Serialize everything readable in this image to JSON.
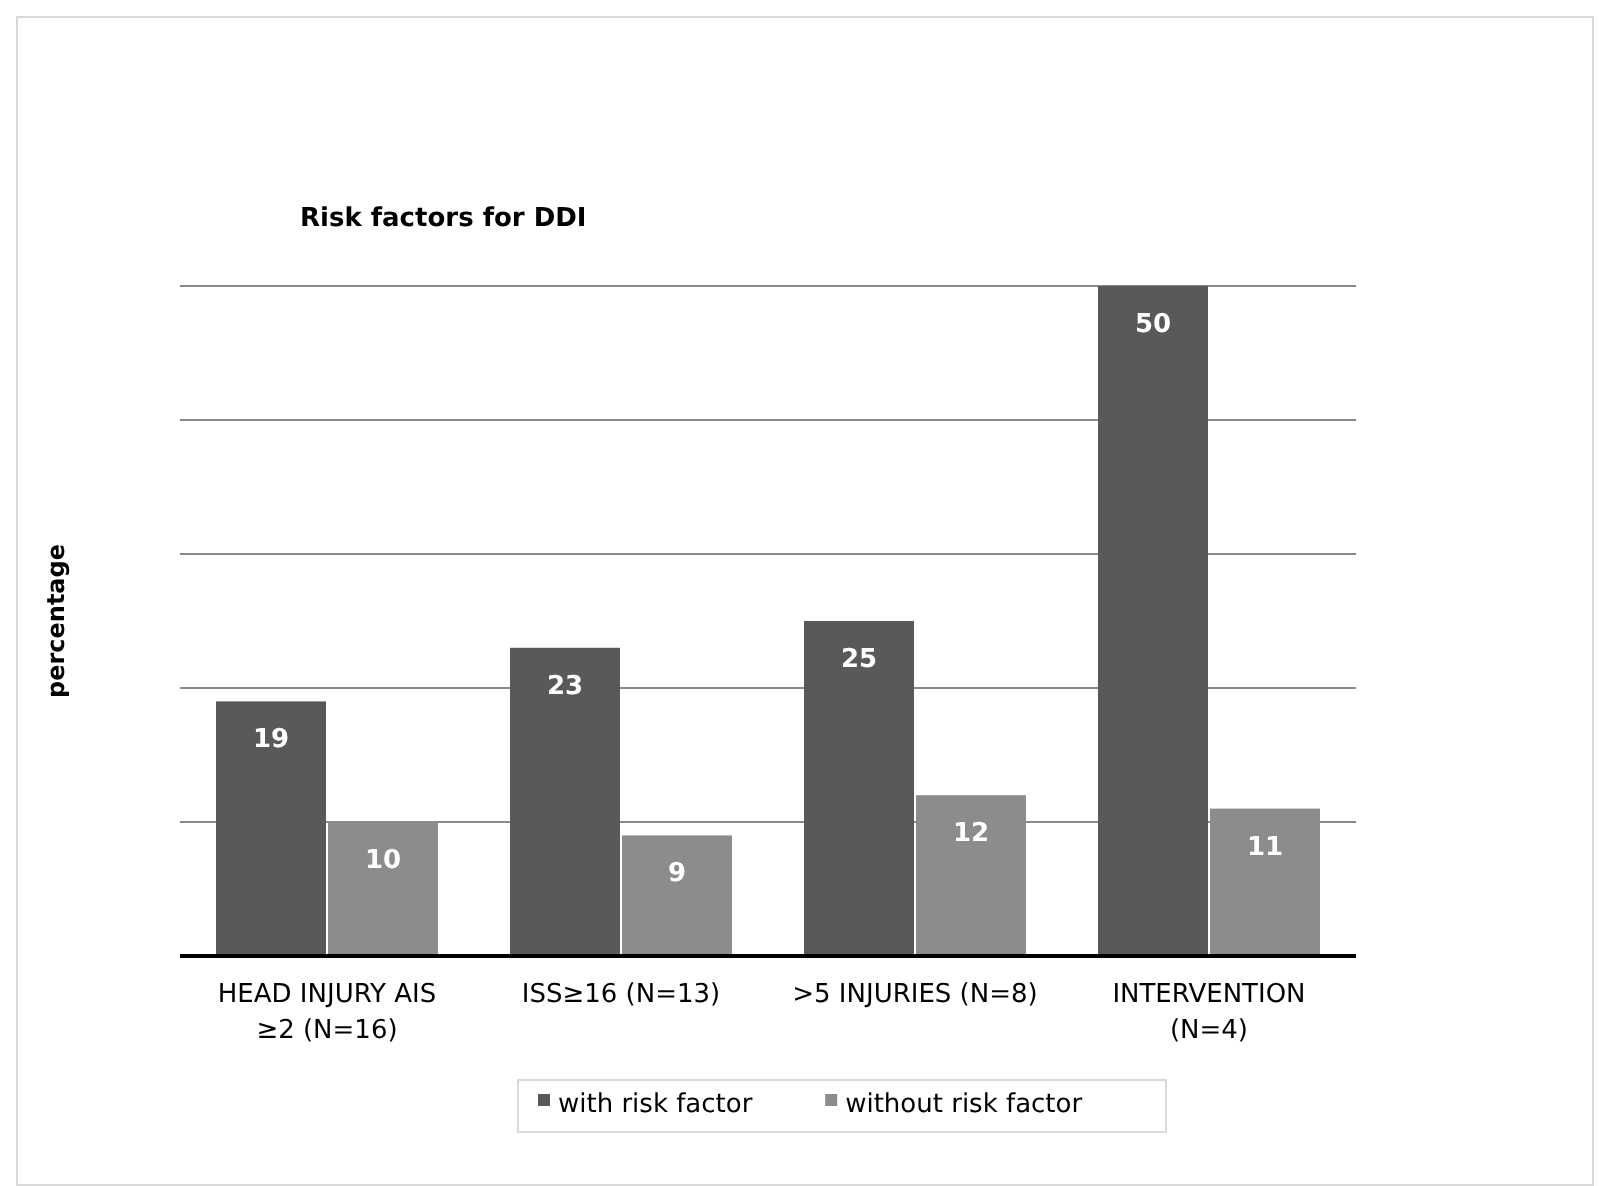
{
  "chart_data": {
    "type": "bar",
    "title": "Risk factors for DDI",
    "ylabel": "percentage",
    "categories": [
      "HEAD INJURY AIS ≥2 (N=16)",
      "ISS≥16 (N=13)",
      ">5 INJURIES (N=8)",
      "INTERVENTION (N=4)"
    ],
    "series": [
      {
        "name": "with risk factor",
        "color": "#595959",
        "values": [
          19,
          23,
          25,
          50
        ]
      },
      {
        "name": "without risk factor",
        "color": "#8c8c8c",
        "values": [
          10,
          9,
          12,
          11
        ]
      }
    ],
    "ylim": [
      0,
      50
    ],
    "yticks": [
      {
        "value": 10,
        "label": null
      },
      {
        "value": 20,
        "label": null
      },
      {
        "value": 30,
        "label": null
      },
      {
        "value": 40,
        "label": null
      },
      {
        "value": 50,
        "label": null
      }
    ],
    "grid": "y",
    "legend": "bottom",
    "data_labels": true
  }
}
